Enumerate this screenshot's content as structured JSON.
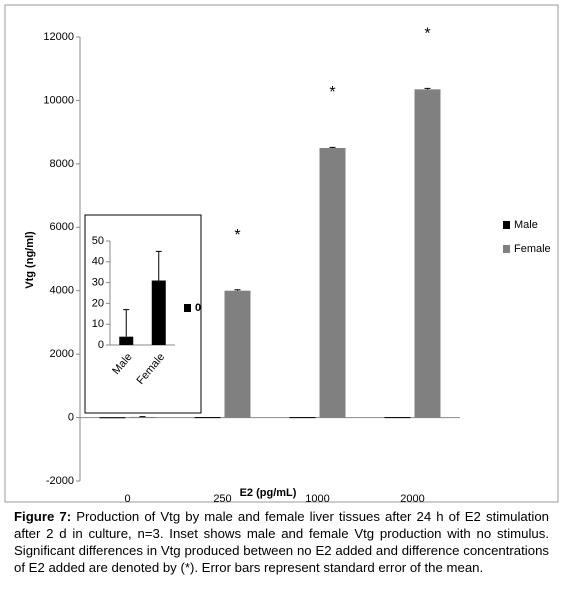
{
  "chart_data": [
    {
      "type": "bar",
      "categories": [
        "0",
        "250",
        "1000",
        "2000"
      ],
      "series": [
        {
          "name": "Male",
          "color": "#000000",
          "values": [
            10,
            15,
            15,
            15
          ]
        },
        {
          "name": "Female",
          "color": "#808080",
          "values": [
            20,
            4000,
            8500,
            10350
          ],
          "errors": [
            10,
            30,
            20,
            30
          ]
        }
      ],
      "ylim": [
        -2000,
        12000
      ],
      "yticks": [
        -2000,
        0,
        2000,
        4000,
        6000,
        8000,
        10000,
        12000
      ],
      "ylabel": "Vtg (ng/ml)",
      "xlabel": "E2 (pg/mL)",
      "annotations": [
        "*",
        "*",
        "*"
      ],
      "legend": "right"
    },
    {
      "type": "bar",
      "categories": [
        "Male",
        "Female"
      ],
      "series": [
        {
          "name": "0",
          "color": "#000000",
          "values": [
            4,
            31
          ],
          "errors": [
            13,
            14
          ]
        }
      ],
      "ylim": [
        0,
        50
      ],
      "yticks": [
        0,
        10,
        20,
        30,
        40,
        50
      ]
    }
  ],
  "caption": {
    "label": "Figure 7:",
    "text": " Production of Vtg by male and female liver tissues after 24 h of E2 stimulation after 2 d in culture, n=3. Inset shows male and female Vtg production with no stimulus. Significant differences in Vtg produced between no E2 added and difference concentrations of E2 added are denoted by (*). Error bars represent standard error of the mean."
  }
}
